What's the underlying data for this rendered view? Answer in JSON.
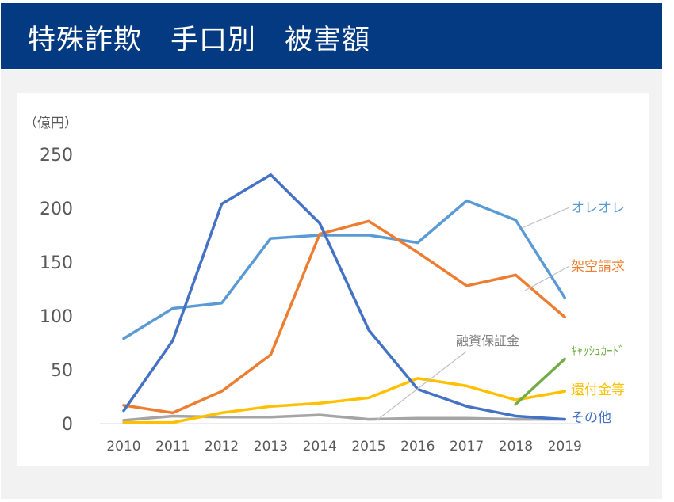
{
  "header": {
    "title": "特殊詐欺　手口別　被害額"
  },
  "chart_data": {
    "type": "line",
    "unit_label": "（億円）",
    "title": "",
    "xlabel": "",
    "ylabel": "",
    "ylim": [
      0,
      250
    ],
    "yticks": [
      0,
      50,
      100,
      150,
      200,
      250
    ],
    "x": [
      "2010",
      "2011",
      "2012",
      "2013",
      "2014",
      "2015",
      "2016",
      "2017",
      "2018",
      "2019"
    ],
    "grid": false,
    "legend": "direct labels at right of lines",
    "series": [
      {
        "name": "オレオレ",
        "color": "#5b9bd5",
        "values": [
          79,
          107,
          112,
          172,
          175,
          175,
          168,
          207,
          189,
          117
        ]
      },
      {
        "name": "架空請求",
        "color": "#ed7d31",
        "values": [
          17,
          10,
          30,
          64,
          176,
          188,
          159,
          128,
          138,
          99
        ]
      },
      {
        "name": "その他",
        "color": "#4472c4",
        "values": [
          12,
          77,
          204,
          231,
          186,
          87,
          32,
          16,
          7,
          4
        ]
      },
      {
        "name": "融資保証金",
        "color": "#a5a5a5",
        "values": [
          3,
          7,
          6,
          6,
          8,
          4,
          5,
          5,
          4,
          4
        ]
      },
      {
        "name": "還付金等",
        "color": "#ffc000",
        "values": [
          1,
          1,
          10,
          16,
          19,
          24,
          42,
          35,
          22,
          30
        ]
      },
      {
        "name": "ｷｬｯｼｭｶｰﾄﾞ",
        "color": "#70ad47",
        "values": [
          null,
          null,
          null,
          null,
          null,
          null,
          null,
          null,
          18,
          60
        ]
      }
    ]
  }
}
